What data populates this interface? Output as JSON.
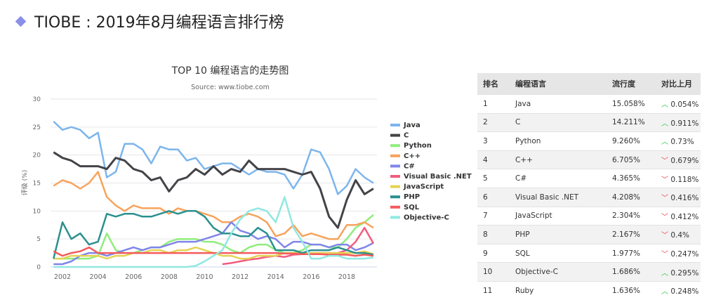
{
  "slide_title": "TIOBE : 2019年8月编程语言排行榜",
  "chart_data": {
    "type": "line",
    "title": "TOP 10 编程语言的走势图",
    "subtitle": "Source: www.tiobe.com",
    "ylabel": "评级 (%)",
    "xlabel": "",
    "ylim": [
      0,
      30
    ],
    "yticks": [
      "0",
      "5",
      "10",
      "15",
      "20",
      "25",
      "30"
    ],
    "xticks": [
      "2002",
      "2004",
      "2006",
      "2008",
      "2010",
      "2012",
      "2014",
      "2016",
      "2018"
    ],
    "grid": true,
    "legend_position": "right",
    "x": [
      2001.5,
      2002,
      2002.5,
      2003,
      2003.5,
      2004,
      2004.5,
      2005,
      2005.5,
      2006,
      2006.5,
      2007,
      2007.5,
      2008,
      2008.5,
      2009,
      2009.5,
      2010,
      2010.5,
      2011,
      2011.5,
      2012,
      2012.5,
      2013,
      2013.5,
      2014,
      2014.5,
      2015,
      2015.5,
      2016,
      2016.5,
      2017,
      2017.5,
      2018,
      2018.5,
      2019,
      2019.5
    ],
    "series": [
      {
        "name": "Java",
        "color": "#7cb5ec",
        "values": [
          26,
          24.5,
          25,
          24.5,
          23,
          24,
          16,
          17,
          22,
          22,
          21,
          18.5,
          21.5,
          21,
          21,
          19,
          19.5,
          17.5,
          18,
          18.5,
          18.5,
          17.5,
          16.5,
          17.5,
          17,
          17,
          16.5,
          14,
          16.5,
          21,
          20.5,
          17.5,
          13,
          14.5,
          17.5,
          16,
          15
        ]
      },
      {
        "name": "C",
        "color": "#434348",
        "values": [
          20.5,
          19.5,
          19,
          18,
          18,
          18,
          17.5,
          19.5,
          19,
          17.5,
          17,
          15.5,
          16,
          13.5,
          15.5,
          16,
          17.5,
          16.5,
          18,
          16.5,
          17.5,
          17,
          19,
          17.5,
          17.5,
          17.5,
          17.5,
          17,
          16.5,
          17,
          14,
          9,
          7,
          12,
          15.5,
          13,
          14
        ]
      },
      {
        "name": "Python",
        "color": "#90ed7d",
        "values": [
          1.5,
          1.5,
          1.5,
          1.5,
          1.5,
          2,
          6,
          3,
          2.5,
          2.5,
          3,
          3.5,
          3.5,
          4.5,
          5,
          5,
          5,
          4.5,
          4.5,
          4,
          3,
          2.5,
          3.5,
          4,
          4,
          3,
          2.5,
          2.5,
          3,
          4,
          4,
          3.5,
          3.5,
          5,
          7,
          8,
          9.3
        ]
      },
      {
        "name": "C++",
        "color": "#f7a35c",
        "values": [
          14.5,
          15.5,
          15,
          14,
          15,
          17,
          12.5,
          11,
          10,
          11,
          10.5,
          10.5,
          10.5,
          9.5,
          10.5,
          10,
          10,
          9.5,
          9,
          8,
          8,
          9,
          9.5,
          9,
          8,
          5.5,
          6,
          7.5,
          5.5,
          6,
          5.5,
          5,
          5,
          7.5,
          7.5,
          8,
          7
        ]
      },
      {
        "name": "C#",
        "color": "#8085e9",
        "values": [
          0.5,
          0.5,
          1,
          2,
          2.5,
          2.5,
          2,
          2.5,
          3,
          3.5,
          3,
          3.5,
          3.5,
          4,
          4.5,
          4.5,
          4.5,
          5,
          5.5,
          6,
          8,
          6.5,
          6,
          5,
          5.5,
          5,
          3.5,
          4.5,
          4.5,
          4,
          4,
          3.5,
          4,
          4,
          3,
          3.5,
          4.3
        ]
      },
      {
        "name": "Visual Basic .NET",
        "color": "#f15c80",
        "values": [
          null,
          null,
          null,
          null,
          null,
          null,
          null,
          null,
          null,
          null,
          null,
          null,
          null,
          null,
          null,
          null,
          null,
          null,
          null,
          0.5,
          0.7,
          1,
          1.3,
          1.5,
          1.8,
          2,
          1.8,
          2.2,
          2.3,
          2.5,
          2.5,
          2.5,
          2.5,
          3,
          4.5,
          7,
          4.2
        ]
      },
      {
        "name": "JavaScript",
        "color": "#e4d354",
        "values": [
          1.5,
          1.5,
          2,
          2,
          2,
          2,
          1.5,
          2,
          2,
          2.5,
          2.5,
          3,
          3,
          2.5,
          3,
          3,
          3.5,
          3,
          2.5,
          2,
          2,
          1.5,
          1.5,
          2,
          2,
          2,
          2.5,
          2.5,
          2.5,
          2.5,
          2.5,
          2.5,
          2.5,
          2.5,
          2.5,
          2.8,
          2.3
        ]
      },
      {
        "name": "PHP",
        "color": "#2b908f",
        "values": [
          1.5,
          8,
          5,
          6,
          4,
          4.5,
          9.5,
          9,
          9.5,
          9.5,
          9,
          9,
          9.5,
          10,
          9.5,
          10,
          10,
          9,
          7,
          6,
          6,
          5.5,
          5.5,
          7,
          6,
          3,
          3,
          3,
          2.5,
          3,
          3,
          3,
          3.5,
          3,
          2.5,
          2.5,
          2.2
        ]
      },
      {
        "name": "SQL",
        "color": "#f45b5b",
        "values": [
          2.8,
          2,
          2.5,
          2.8,
          3.5,
          2.5,
          2.5,
          2.5,
          2.5,
          2.5,
          2.5,
          2.5,
          2.5,
          2.5,
          2.5,
          2.5,
          2.5,
          2.5,
          2.5,
          2.5,
          2.5,
          2.5,
          2.5,
          2.5,
          2.5,
          2.5,
          2.4,
          2.4,
          2.3,
          2.3,
          2.3,
          2.2,
          2.2,
          2.2,
          2,
          2.2,
          2
        ]
      },
      {
        "name": "Objective-C",
        "color": "#91e8e1",
        "values": [
          0,
          0,
          0,
          0,
          0,
          0,
          0,
          0,
          0,
          0,
          0,
          0,
          0,
          0,
          0,
          0,
          0.2,
          1,
          2,
          3,
          6,
          8.5,
          10,
          10.5,
          10,
          8,
          12.5,
          7,
          4.5,
          1.5,
          1.5,
          2,
          2,
          1.5,
          1.5,
          1.5,
          1.7
        ]
      }
    ]
  },
  "table": {
    "headers": [
      "排名",
      "编程语言",
      "流行度",
      "对比上月"
    ],
    "rows": [
      {
        "rank": "1",
        "lang": "Java",
        "pop": "15.058%",
        "dir": "up",
        "change": "0.054%"
      },
      {
        "rank": "2",
        "lang": "C",
        "pop": "14.211%",
        "dir": "up",
        "change": "0.911%"
      },
      {
        "rank": "3",
        "lang": "Python",
        "pop": "9.260%",
        "dir": "up",
        "change": "0.73%"
      },
      {
        "rank": "4",
        "lang": "C++",
        "pop": "6.705%",
        "dir": "down",
        "change": "0.679%"
      },
      {
        "rank": "5",
        "lang": "C#",
        "pop": "4.365%",
        "dir": "down",
        "change": "0.118%"
      },
      {
        "rank": "6",
        "lang": "Visual Basic .NET",
        "pop": "4.208%",
        "dir": "down",
        "change": "0.416%"
      },
      {
        "rank": "7",
        "lang": "JavaScript",
        "pop": "2.304%",
        "dir": "down",
        "change": "0.412%"
      },
      {
        "rank": "8",
        "lang": "PHP",
        "pop": "2.167%",
        "dir": "down",
        "change": "0.4%"
      },
      {
        "rank": "9",
        "lang": "SQL",
        "pop": "1.977%",
        "dir": "down",
        "change": "0.247%"
      },
      {
        "rank": "10",
        "lang": "Objective-C",
        "pop": "1.686%",
        "dir": "up",
        "change": "0.295%"
      },
      {
        "rank": "11",
        "lang": "Ruby",
        "pop": "1.636%",
        "dir": "up",
        "change": "0.248%"
      }
    ]
  }
}
